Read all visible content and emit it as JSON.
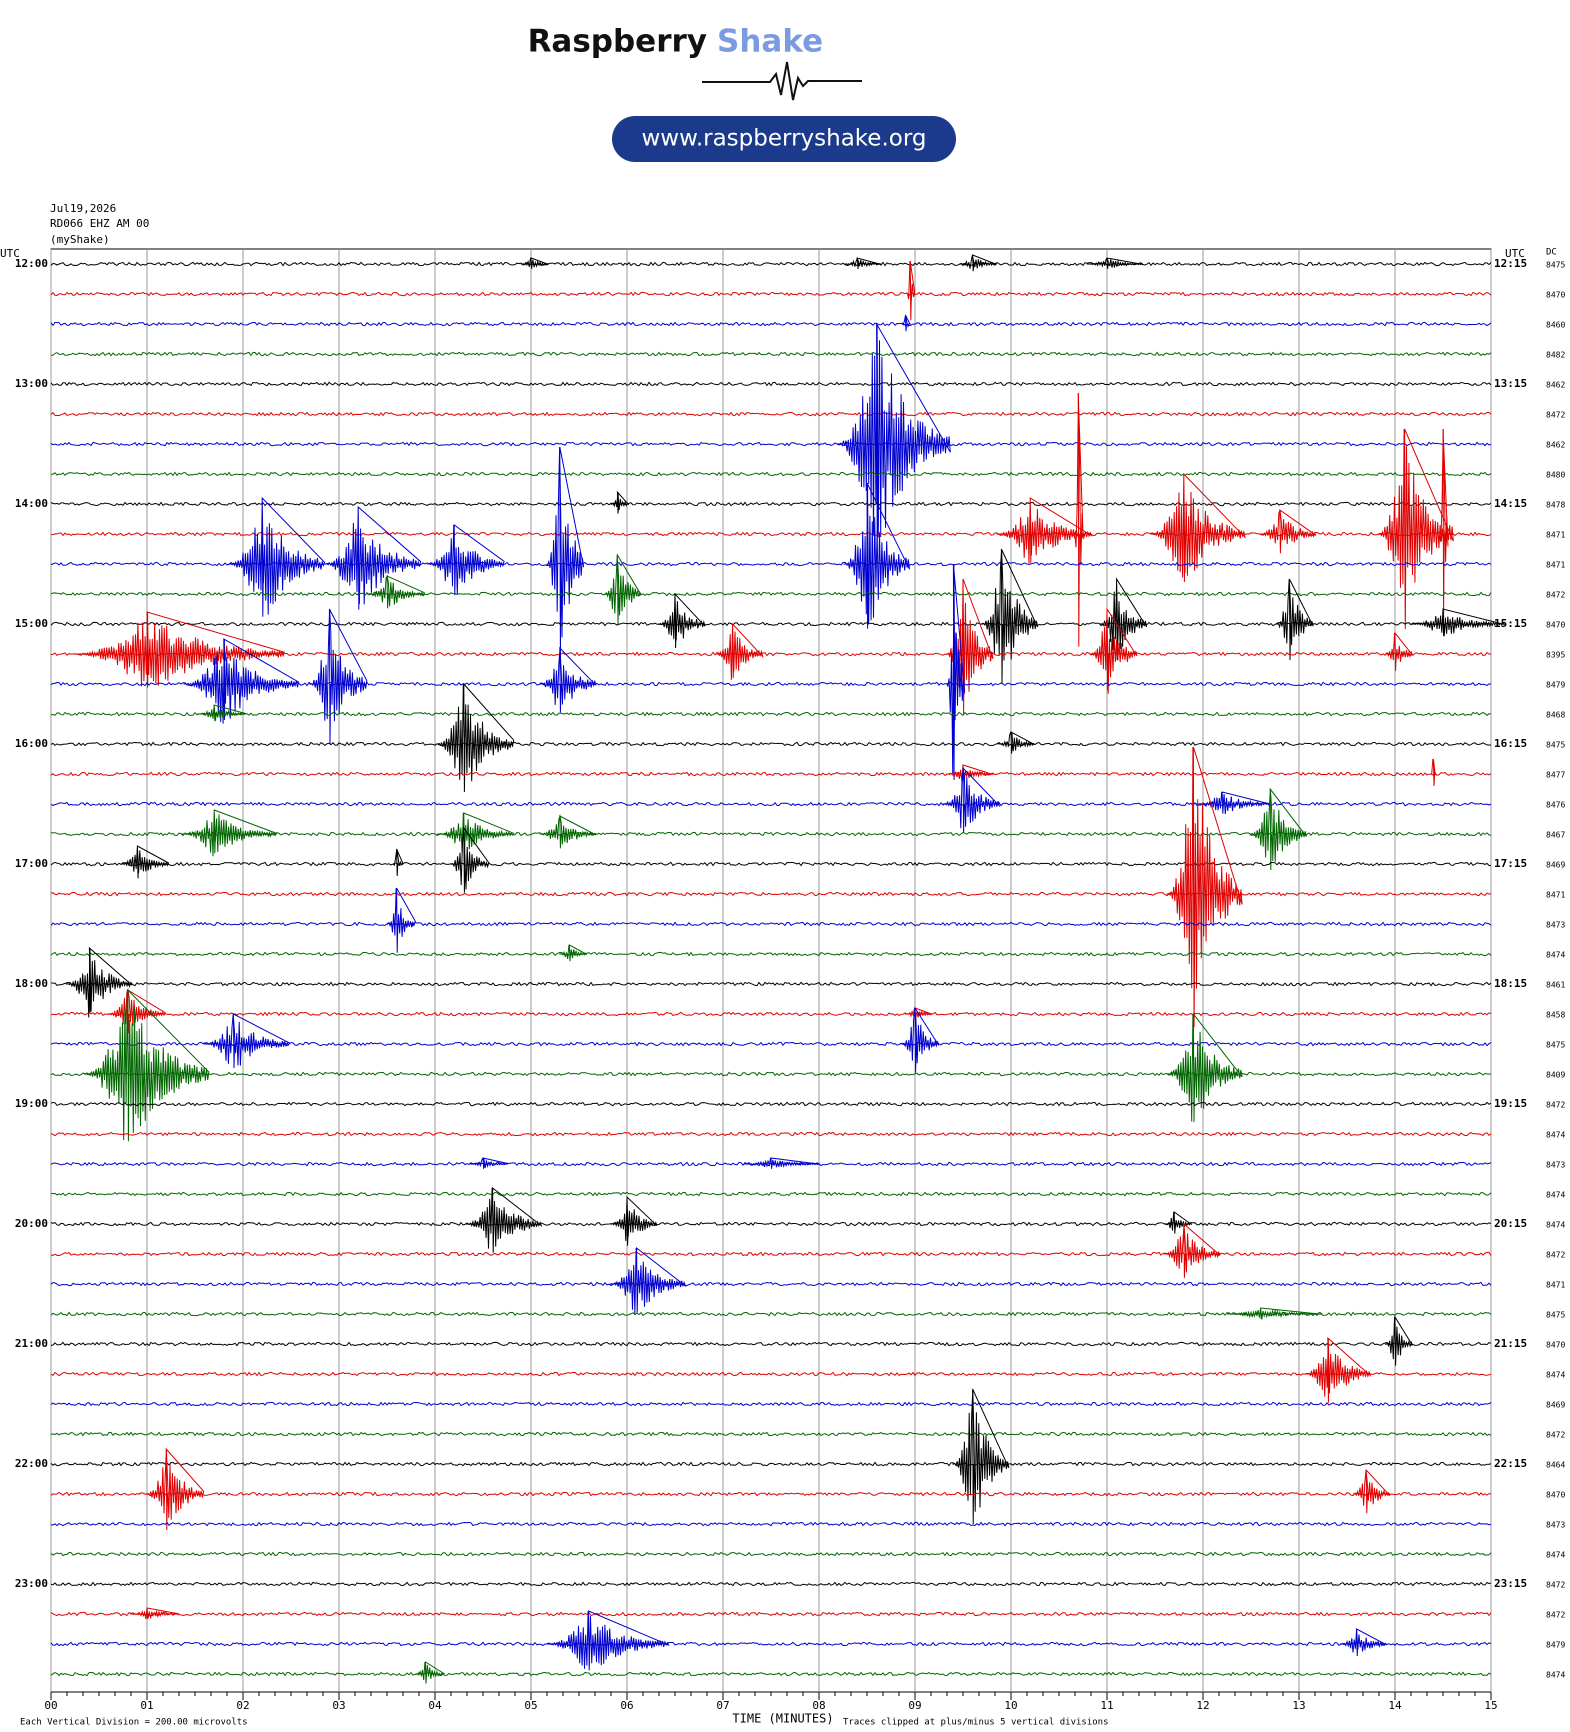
{
  "header": {
    "brand": "Raspberry",
    "brand_accent": "Shake",
    "url": "www.raspberryshake.org"
  },
  "chart_data": {
    "type": "helicorder",
    "info": [
      "Jul19,2026",
      "RD066 EHZ AM 00",
      "(myShake)"
    ],
    "left_axis_title": "UTC",
    "right_axis_title": "UTC",
    "dc_title": "DC",
    "colors": [
      "#000000",
      "#e00000",
      "#0000d0",
      "#006600"
    ],
    "hours": [
      {
        "left": "12:00",
        "right": "12:15"
      },
      {
        "left": "13:00",
        "right": "13:15"
      },
      {
        "left": "14:00",
        "right": "14:15"
      },
      {
        "left": "15:00",
        "right": "15:15"
      },
      {
        "left": "16:00",
        "right": "16:15"
      },
      {
        "left": "17:00",
        "right": "17:15"
      },
      {
        "left": "18:00",
        "right": "18:15"
      },
      {
        "left": "19:00",
        "right": "19:15"
      },
      {
        "left": "20:00",
        "right": "20:15"
      },
      {
        "left": "21:00",
        "right": "21:15"
      },
      {
        "left": "22:00",
        "right": "22:15"
      },
      {
        "left": "23:00",
        "right": "23:15"
      }
    ],
    "traces": [
      {
        "dc": "8475",
        "events": [
          [
            5.0,
            0.2,
            0.3
          ],
          [
            8.4,
            0.2,
            0.4
          ],
          [
            9.6,
            0.3,
            0.4
          ],
          [
            11.0,
            0.2,
            0.6
          ]
        ]
      },
      {
        "dc": "8470",
        "events": [
          [
            8.95,
            1.1,
            0.08
          ]
        ]
      },
      {
        "dc": "8460",
        "events": [
          [
            8.9,
            0.3,
            0.1
          ]
        ]
      },
      {
        "dc": "8482",
        "events": []
      },
      {
        "dc": "8462",
        "events": []
      },
      {
        "dc": "8472",
        "events": []
      },
      {
        "dc": "8462",
        "events": [
          [
            8.6,
            4,
            1.2
          ]
        ]
      },
      {
        "dc": "8480",
        "events": []
      },
      {
        "dc": "8478",
        "events": [
          [
            5.9,
            0.4,
            0.2
          ]
        ]
      },
      {
        "dc": "8471",
        "events": [
          [
            10.2,
            1.2,
            1.0
          ],
          [
            10.7,
            4.7,
            0.1
          ],
          [
            11.8,
            2,
            1.0
          ],
          [
            12.8,
            0.8,
            0.6
          ],
          [
            14.1,
            3.5,
            0.8
          ],
          [
            14.5,
            3.5,
            0.1
          ]
        ]
      },
      {
        "dc": "8471",
        "events": [
          [
            2.2,
            2.2,
            1.0
          ],
          [
            3.2,
            1.9,
            1.0
          ],
          [
            4.2,
            1.3,
            0.8
          ],
          [
            5.3,
            3.9,
            0.4
          ],
          [
            8.5,
            2.7,
            0.7
          ]
        ]
      },
      {
        "dc": "8472",
        "events": [
          [
            3.5,
            0.6,
            0.6
          ],
          [
            5.9,
            1.3,
            0.4
          ]
        ]
      },
      {
        "dc": "8470",
        "events": [
          [
            6.5,
            1,
            0.5
          ],
          [
            9.9,
            2.5,
            0.6
          ],
          [
            11.1,
            1.5,
            0.5
          ],
          [
            12.9,
            1.5,
            0.4
          ],
          [
            14.5,
            0.5,
            1.0
          ]
        ]
      },
      {
        "dc": "8395",
        "events": [
          [
            1.0,
            1.4,
            2.2
          ],
          [
            7.1,
            1,
            0.5
          ],
          [
            9.5,
            2.5,
            0.5
          ],
          [
            11.0,
            1.5,
            0.5
          ],
          [
            14.0,
            0.7,
            0.3
          ]
        ]
      },
      {
        "dc": "8479",
        "events": [
          [
            1.8,
            1.5,
            1.2
          ],
          [
            2.9,
            2.5,
            0.6
          ],
          [
            5.3,
            1.2,
            0.6
          ],
          [
            9.4,
            4,
            0.2
          ]
        ]
      },
      {
        "dc": "8468",
        "events": [
          [
            1.7,
            0.3,
            0.5
          ]
        ]
      },
      {
        "dc": "8475",
        "events": [
          [
            4.3,
            2,
            0.8
          ],
          [
            10.0,
            0.4,
            0.4
          ]
        ]
      },
      {
        "dc": "8477",
        "events": [
          [
            9.5,
            0.3,
            0.5
          ],
          [
            14.4,
            0.5,
            0.05
          ]
        ]
      },
      {
        "dc": "8476",
        "events": [
          [
            9.5,
            1.2,
            0.6
          ],
          [
            12.2,
            0.4,
            0.8
          ]
        ]
      },
      {
        "dc": "8467",
        "events": [
          [
            1.7,
            0.8,
            1.0
          ],
          [
            4.3,
            0.7,
            0.8
          ],
          [
            5.3,
            0.6,
            0.6
          ],
          [
            12.7,
            1.5,
            0.6
          ]
        ]
      },
      {
        "dc": "8469",
        "events": [
          [
            0.9,
            0.6,
            0.5
          ],
          [
            3.6,
            0.5,
            0.1
          ],
          [
            4.3,
            1.2,
            0.4
          ]
        ]
      },
      {
        "dc": "8471",
        "events": [
          [
            11.9,
            4.9,
            0.8
          ]
        ]
      },
      {
        "dc": "8473",
        "events": [
          [
            3.6,
            1.2,
            0.3
          ]
        ]
      },
      {
        "dc": "8474",
        "events": [
          [
            5.4,
            0.3,
            0.3
          ]
        ]
      },
      {
        "dc": "8461",
        "events": [
          [
            0.4,
            1.2,
            0.7
          ]
        ]
      },
      {
        "dc": "8458",
        "events": [
          [
            0.8,
            0.8,
            0.6
          ],
          [
            9.0,
            0.2,
            0.3
          ]
        ]
      },
      {
        "dc": "8475",
        "events": [
          [
            1.9,
            1,
            0.9
          ],
          [
            9.0,
            1.2,
            0.4
          ]
        ]
      },
      {
        "dc": "8409",
        "events": [
          [
            0.8,
            2.8,
            1.3
          ],
          [
            11.9,
            2,
            0.8
          ]
        ]
      },
      {
        "dc": "8472",
        "events": []
      },
      {
        "dc": "8474",
        "events": []
      },
      {
        "dc": "8473",
        "events": [
          [
            4.5,
            0.2,
            0.4
          ],
          [
            7.5,
            0.2,
            0.8
          ]
        ]
      },
      {
        "dc": "8474",
        "events": []
      },
      {
        "dc": "8474",
        "events": [
          [
            4.6,
            1.2,
            0.8
          ],
          [
            6.0,
            0.9,
            0.5
          ],
          [
            11.7,
            0.4,
            0.3
          ]
        ]
      },
      {
        "dc": "8472",
        "events": [
          [
            11.8,
            1,
            0.6
          ]
        ]
      },
      {
        "dc": "8471",
        "events": [
          [
            6.1,
            1.2,
            0.8
          ]
        ]
      },
      {
        "dc": "8475",
        "events": [
          [
            12.6,
            0.2,
            1.0
          ]
        ]
      },
      {
        "dc": "8470",
        "events": [
          [
            14.0,
            0.9,
            0.3
          ]
        ]
      },
      {
        "dc": "8474",
        "events": [
          [
            13.3,
            1.2,
            0.7
          ]
        ]
      },
      {
        "dc": "8469",
        "events": []
      },
      {
        "dc": "8472",
        "events": []
      },
      {
        "dc": "8464",
        "events": [
          [
            9.6,
            2.5,
            0.6
          ]
        ]
      },
      {
        "dc": "8470",
        "events": [
          [
            1.2,
            1.5,
            0.6
          ],
          [
            13.7,
            0.8,
            0.4
          ]
        ]
      },
      {
        "dc": "8473",
        "events": []
      },
      {
        "dc": "8474",
        "events": []
      },
      {
        "dc": "8472",
        "events": []
      },
      {
        "dc": "8472",
        "events": [
          [
            1.0,
            0.2,
            0.5
          ]
        ]
      },
      {
        "dc": "8479",
        "events": [
          [
            5.6,
            1.1,
            1.3
          ],
          [
            13.6,
            0.5,
            0.5
          ]
        ]
      },
      {
        "dc": "8474",
        "events": [
          [
            3.9,
            0.4,
            0.3
          ]
        ]
      }
    ],
    "xlim": [
      0,
      15
    ],
    "xticks": [
      {
        "value": 0,
        "label": "00"
      },
      {
        "value": 1,
        "label": "01"
      },
      {
        "value": 2,
        "label": "02"
      },
      {
        "value": 3,
        "label": "03"
      },
      {
        "value": 4,
        "label": "04"
      },
      {
        "value": 5,
        "label": "05"
      },
      {
        "value": 6,
        "label": "06"
      },
      {
        "value": 7,
        "label": "07"
      },
      {
        "value": 8,
        "label": "08"
      },
      {
        "value": 9,
        "label": "09"
      },
      {
        "value": 10,
        "label": "10"
      },
      {
        "value": 11,
        "label": "11"
      },
      {
        "value": 12,
        "label": "12"
      },
      {
        "value": 13,
        "label": "13"
      },
      {
        "value": 14,
        "label": "14"
      },
      {
        "value": 15,
        "label": "15"
      }
    ],
    "xlabel": "TIME (MINUTES)",
    "scale_note": "Each Vertical Division =  200.00 microvolts",
    "clip_note": "Traces clipped at plus/minus 5 vertical divisions",
    "grid": true
  }
}
